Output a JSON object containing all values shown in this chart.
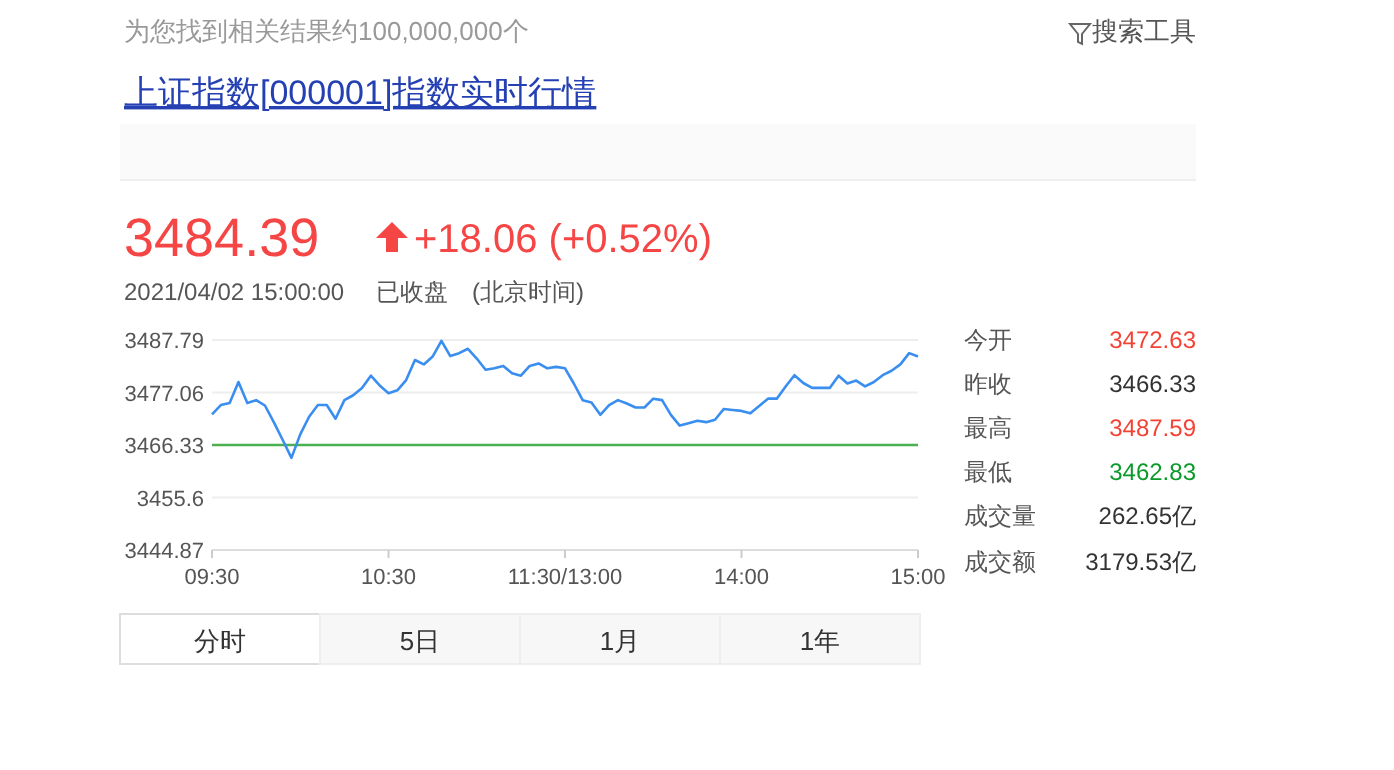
{
  "chart_data": {
    "type": "line",
    "title": "上证指数[000001]指数实时行情",
    "categories": [
      "09:30",
      null,
      null,
      null,
      null,
      null,
      null,
      null,
      null,
      null,
      null,
      null,
      null,
      null,
      null,
      null,
      null,
      null,
      null,
      null,
      "10:30",
      null,
      null,
      null,
      null,
      null,
      null,
      null,
      null,
      null,
      null,
      null,
      null,
      null,
      null,
      null,
      null,
      null,
      null,
      null,
      "11:30/13:00",
      null,
      null,
      null,
      null,
      null,
      null,
      null,
      null,
      null,
      null,
      null,
      null,
      null,
      null,
      null,
      null,
      null,
      null,
      null,
      "14:00",
      null,
      null,
      null,
      null,
      null,
      null,
      null,
      null,
      null,
      null,
      null,
      null,
      null,
      null,
      null,
      null,
      null,
      null,
      null,
      "15:00"
    ],
    "series": [
      {
        "color": "#3a8ef0",
        "values": [
          3472.6,
          3474.5,
          3474.9,
          3479.2,
          3474.9,
          3475.5,
          3474.4,
          3471,
          3467.4,
          3463.7,
          3468.5,
          3472.1,
          3474.5,
          3474.5,
          3471.7,
          3475.5,
          3476.5,
          3478,
          3480.5,
          3478.5,
          3476.9,
          3477.5,
          3479.6,
          3483.7,
          3482.8,
          3484.4,
          3487.6,
          3484.5,
          3485.1,
          3486,
          3484,
          3481.7,
          3482,
          3482.5,
          3481,
          3480.5,
          3482.5,
          3483,
          3482,
          3482.3,
          3482,
          3478.9,
          3475.5,
          3475,
          3472.5,
          3474.5,
          3475.5,
          3474.8,
          3474,
          3474,
          3475.8,
          3475.5,
          3472.5,
          3470.3,
          3470.8,
          3471.3,
          3471,
          3471.5,
          3473.7,
          3473.5,
          3473.3,
          3472.8,
          3474.3,
          3475.8,
          3475.8,
          3478.3,
          3480.6,
          3479,
          3478,
          3478,
          3478,
          3480.5,
          3478.9,
          3479.5,
          3478.3,
          3479.2,
          3480.6,
          3481.5,
          3482.8,
          3485.1,
          3484.4
        ]
      }
    ],
    "ylim": [
      3444.87,
      3487.79
    ],
    "yticks": [
      3444.87,
      3455.6,
      3466.33,
      3477.06,
      3487.79
    ],
    "grid": "y",
    "ref_lines": [
      {
        "axis": "y",
        "value": 3466.33,
        "color": "#4caf50"
      }
    ],
    "annotations": [
      "为您找到相关结果约100,000,000个",
      "搜索工具",
      "3484.39",
      "+18.06 (+0.52%)",
      "2021/04/02 15:00:00",
      "已收盘",
      "(北京时间)",
      "今开",
      "3472.63",
      "昨收",
      "3466.33",
      "最高",
      "3487.59",
      "最低",
      "3462.83",
      "成交量",
      "262.65亿",
      "成交额",
      "3179.53亿",
      "分时",
      "5日",
      "1月",
      "1年"
    ]
  }
}
